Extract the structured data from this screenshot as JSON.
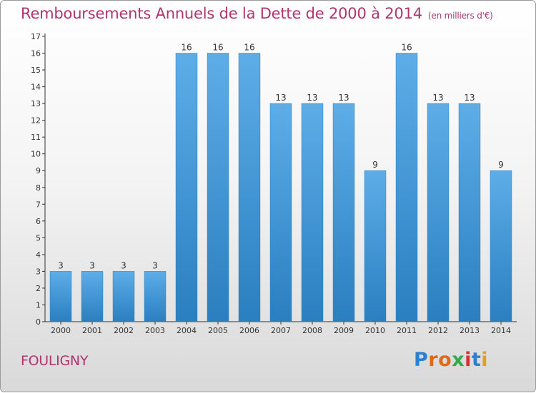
{
  "header": {
    "title": "Remboursements Annuels de la Dette de 2000 à 2014",
    "subtitle": "(en milliers d'€)"
  },
  "footer": {
    "commune": "FOULIGNY",
    "logo": "Proxiti",
    "logo_colors": [
      "#2e7fd0",
      "#e06a1c",
      "#e06a1c",
      "#36a84b",
      "#d6302a",
      "#2e7fd0",
      "#e0a21c"
    ]
  },
  "chart_data": {
    "type": "bar",
    "title": "Remboursements Annuels de la Dette de 2000 à 2014",
    "unit": "(en milliers d'€)",
    "xlabel": "",
    "ylabel": "",
    "ylim": [
      0,
      17
    ],
    "yticks": [
      0,
      1,
      2,
      3,
      4,
      5,
      6,
      7,
      8,
      9,
      10,
      11,
      12,
      13,
      14,
      15,
      16,
      17
    ],
    "grid": false,
    "categories": [
      "2000",
      "2001",
      "2002",
      "2003",
      "2004",
      "2005",
      "2006",
      "2007",
      "2008",
      "2009",
      "2010",
      "2011",
      "2012",
      "2013",
      "2014"
    ],
    "values": [
      3,
      3,
      3,
      3,
      16,
      16,
      16,
      13,
      13,
      13,
      9,
      16,
      13,
      13,
      9
    ],
    "bar_color_top": "#5dade8",
    "bar_color_bottom": "#2a7fc0"
  }
}
